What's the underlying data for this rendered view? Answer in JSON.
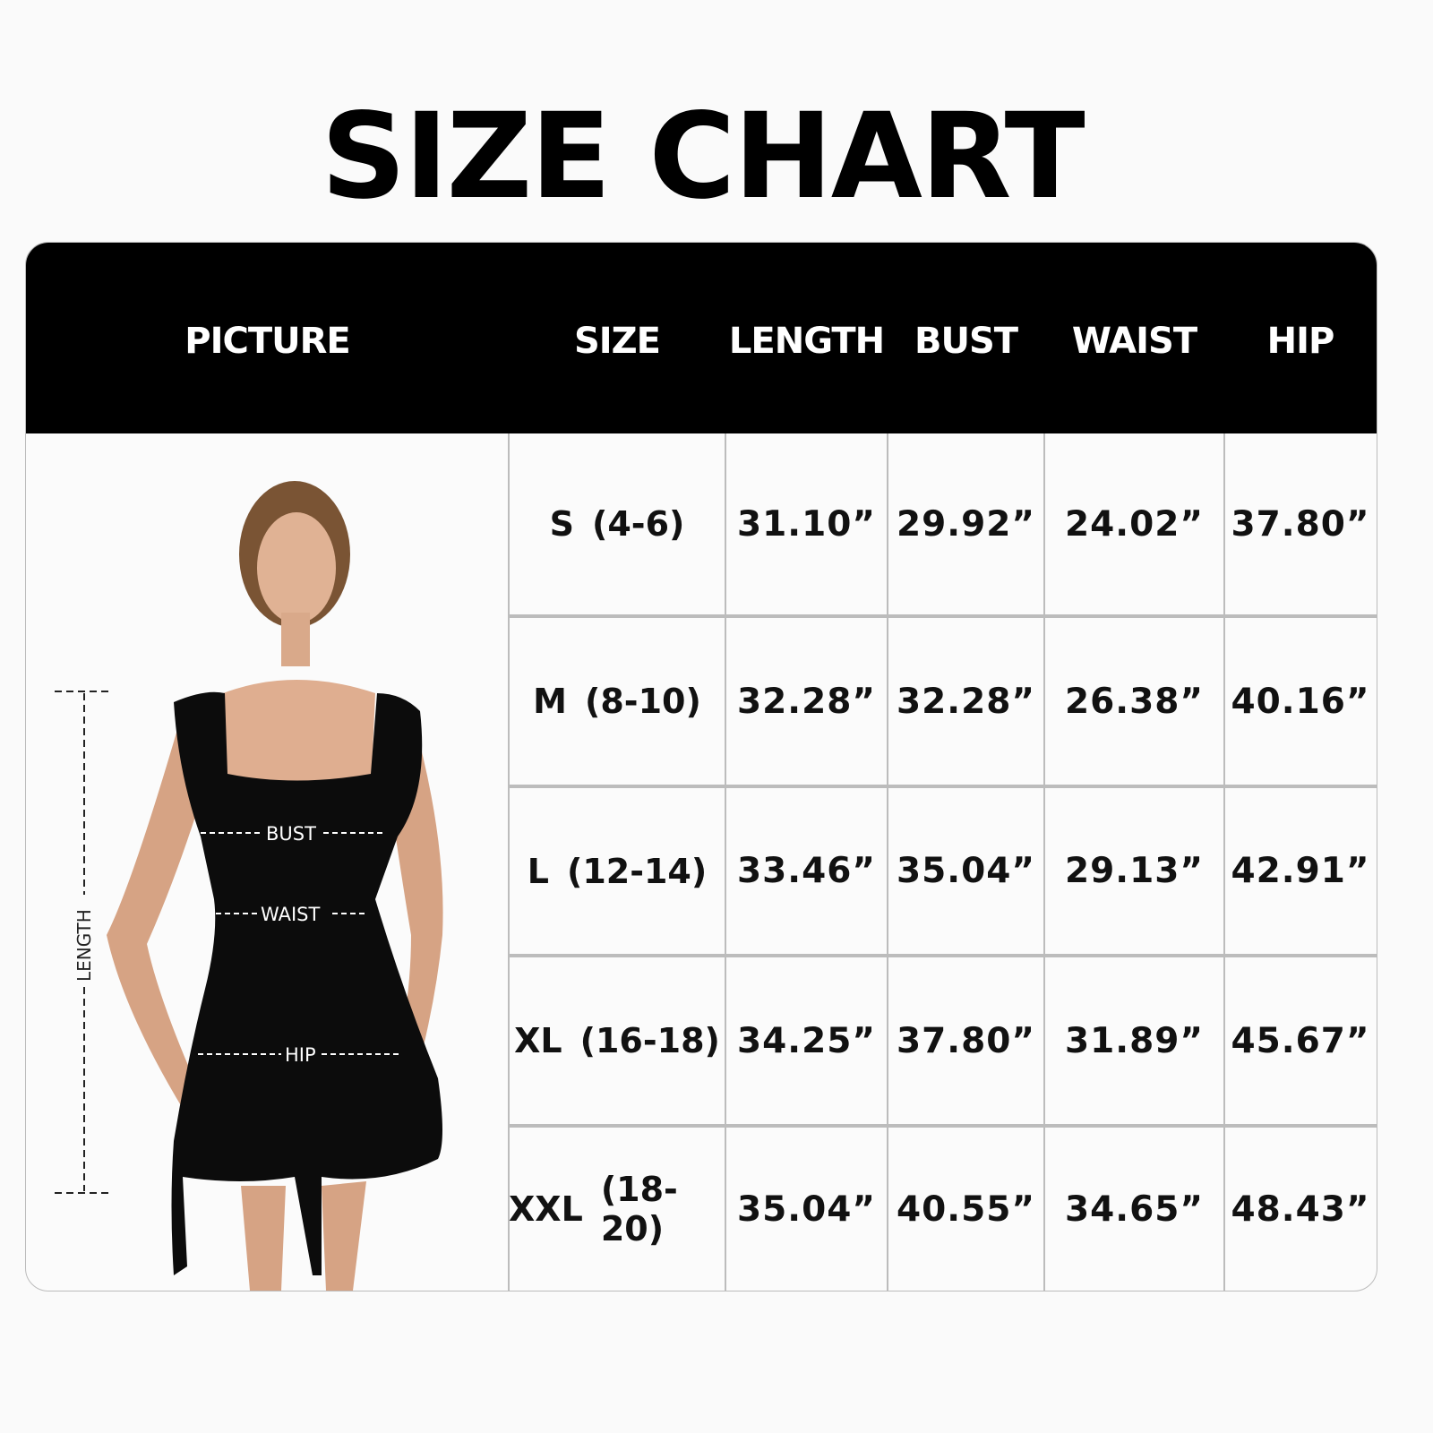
{
  "title": "SIZE CHART",
  "headers": [
    "PICTURE",
    "SIZE",
    "LENGTH",
    "BUST",
    "WAIST",
    "HIP"
  ],
  "rows": [
    {
      "size": "S",
      "range": "(4-6)",
      "length": "31.10”",
      "bust": "29.92”",
      "waist": "24.02”",
      "hip": "37.80”"
    },
    {
      "size": "M",
      "range": "(8-10)",
      "length": "32.28”",
      "bust": "32.28”",
      "waist": "26.38”",
      "hip": "40.16”"
    },
    {
      "size": "L",
      "range": "(12-14)",
      "length": "33.46”",
      "bust": "35.04”",
      "waist": "29.13”",
      "hip": "42.91”"
    },
    {
      "size": "XL",
      "range": "(16-18)",
      "length": "34.25”",
      "bust": "37.80”",
      "waist": "31.89”",
      "hip": "45.67”"
    },
    {
      "size": "XXL",
      "range": "(18-20)",
      "length": "35.04”",
      "bust": "40.55”",
      "waist": "34.65”",
      "hip": "48.43”"
    }
  ],
  "picture_labels": {
    "bust": "BUST",
    "waist": "WAIST",
    "hip": "HIP",
    "length": "LENGTH"
  },
  "colors": {
    "header_bg": "#000000",
    "header_text": "#ffffff",
    "grid": "#bcbcbc",
    "background": "#fafafa"
  }
}
